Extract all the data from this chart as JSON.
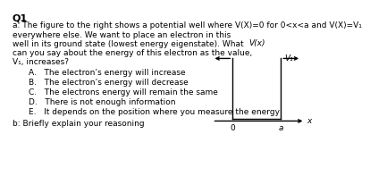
{
  "title": "Q1",
  "line1": "a: The figure to the right shows a potential well where V(X)=0 for 0<x<a and V(X)=V₁",
  "line2": "everywhere else. We want to place an electron in this",
  "line3": "well in its ground state (lowest energy eigenstate). What",
  "line4": "can you say about the energy of this electron as the value,",
  "line5": "V₁, increases?",
  "choices": [
    "A.   The electron’s energy will increase",
    "B.   The electron’s energy will decrease",
    "C.   The electrons energy will remain the same",
    "D.   There is not enough information",
    "E.   It depends on the position where you measure the energy"
  ],
  "question_b": "b: Briefly explain your reasoning",
  "graph_ylabel": "V(x)",
  "graph_xlabel": "x",
  "graph_label_0": "0",
  "graph_label_a": "a",
  "graph_label_V1": "V₁",
  "bg_color": "#ffffff",
  "text_color": "#000000",
  "line_color": "#000000",
  "font_size_title": 8.0,
  "font_size_body": 6.5,
  "font_size_choices": 6.5,
  "font_size_graph": 6.5
}
